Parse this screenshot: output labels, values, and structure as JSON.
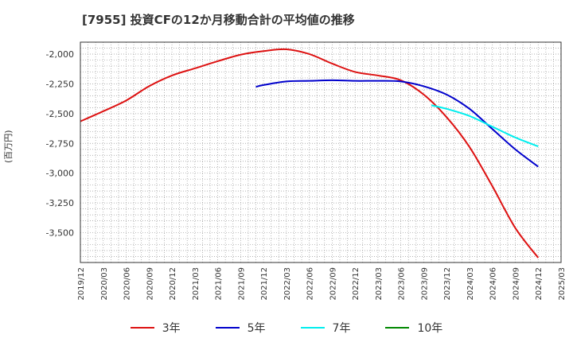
{
  "chart_data": {
    "type": "line",
    "title": "[7955]  投資CFの12か月移動合計の平均値の推移",
    "ylabel": "(百万円)",
    "xlabel": "",
    "ylim": [
      -3750,
      -1900
    ],
    "yticks": [
      -2000,
      -2250,
      -2500,
      -2750,
      -3000,
      -3250,
      -3500
    ],
    "ytick_labels": [
      "-2,000",
      "-2,250",
      "-2,500",
      "-2,750",
      "-3,000",
      "-3,250",
      "-3,500"
    ],
    "xlim": [
      "2019-12",
      "2025-03"
    ],
    "xtick_labels": [
      "2019/12",
      "2020/03",
      "2020/06",
      "2020/09",
      "2020/12",
      "2021/03",
      "2021/06",
      "2021/09",
      "2021/12",
      "2022/03",
      "2022/06",
      "2022/09",
      "2022/12",
      "2023/03",
      "2023/06",
      "2023/09",
      "2023/12",
      "2024/03",
      "2024/06",
      "2024/09",
      "2024/12",
      "2025/03"
    ],
    "grid": true,
    "legend_position": "bottom",
    "series": [
      {
        "name": "3年",
        "color": "#dd1111",
        "x": [
          "2019-12",
          "2020-03",
          "2020-06",
          "2020-09",
          "2020-12",
          "2021-03",
          "2021-06",
          "2021-09",
          "2021-12",
          "2022-03",
          "2022-06",
          "2022-09",
          "2022-12",
          "2023-03",
          "2023-06",
          "2023-09",
          "2023-12",
          "2024-03",
          "2024-06",
          "2024-09",
          "2024-12"
        ],
        "y": [
          -2565,
          -2480,
          -2390,
          -2270,
          -2180,
          -2120,
          -2060,
          -2005,
          -1975,
          -1960,
          -2000,
          -2080,
          -2150,
          -2180,
          -2220,
          -2340,
          -2530,
          -2780,
          -3110,
          -3460,
          -3710
        ]
      },
      {
        "name": "5年",
        "color": "#0000cc",
        "x": [
          "2021-11",
          "2021-12",
          "2022-03",
          "2022-06",
          "2022-09",
          "2022-12",
          "2023-03",
          "2023-06",
          "2023-09",
          "2023-12",
          "2024-03",
          "2024-06",
          "2024-09",
          "2024-12"
        ],
        "y": [
          -2275,
          -2260,
          -2230,
          -2225,
          -2220,
          -2225,
          -2225,
          -2230,
          -2270,
          -2340,
          -2460,
          -2630,
          -2800,
          -2945
        ]
      },
      {
        "name": "7年",
        "color": "#00eeee",
        "x": [
          "2023-10",
          "2023-12",
          "2024-03",
          "2024-06",
          "2024-09",
          "2024-12"
        ],
        "y": [
          -2430,
          -2460,
          -2520,
          -2610,
          -2700,
          -2775
        ]
      },
      {
        "name": "10年",
        "color": "#008800",
        "x": [],
        "y": []
      }
    ]
  }
}
